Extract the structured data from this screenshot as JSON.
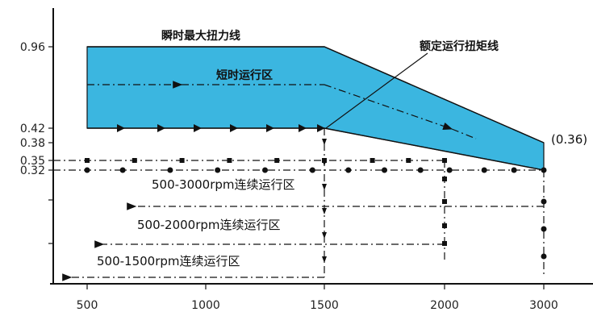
{
  "chart_data": {
    "type": "area",
    "title": "",
    "xlabel": "",
    "ylabel": "",
    "x_ticks": [
      500,
      1000,
      1500,
      2000,
      3000
    ],
    "y_ticks": [
      0.96,
      0.42,
      0.38,
      0.35,
      0.32
    ],
    "series": [
      {
        "name": "瞬时最大扭力线",
        "x": [
          500,
          1500,
          3000
        ],
        "y": [
          0.96,
          0.96,
          0.38
        ]
      },
      {
        "name": "额定运行扭矩线",
        "x": [
          500,
          1500,
          3000
        ],
        "y": [
          0.42,
          0.42,
          0.32
        ]
      }
    ],
    "continuous_zones": [
      {
        "label": "500-3000rpm连续运行区",
        "x": [
          500,
          3000
        ],
        "y": 0.32
      },
      {
        "label": "500-2000rpm连续运行区",
        "x": [
          500,
          2000
        ],
        "y": 0.35
      },
      {
        "label": "500-1500rpm连续运行区",
        "x": [
          500,
          1500
        ],
        "y": 0.38
      }
    ],
    "annotations": {
      "peak_line": "瞬时最大扭力线",
      "short_zone": "短时运行区",
      "rated_line": "额定运行扭矩线",
      "end_value": "(0.36)"
    },
    "colors": {
      "short_zone_fill": "#3bb6e0",
      "line": "#111111"
    }
  }
}
